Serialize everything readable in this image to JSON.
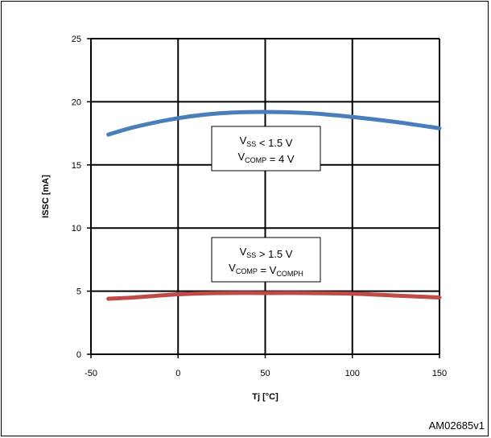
{
  "chart_data": {
    "type": "line",
    "xlabel": "Tj [°C]",
    "ylabel": "ISSC [mA]",
    "xlim": [
      -50,
      150
    ],
    "ylim": [
      0,
      25
    ],
    "xticks": [
      -50,
      0,
      50,
      100,
      150
    ],
    "yticks": [
      0,
      5,
      10,
      15,
      20,
      25
    ],
    "grid": true,
    "series": [
      {
        "color": "#4a7ebb",
        "x": [
          -40,
          -25,
          0,
          25,
          50,
          75,
          100,
          125,
          150
        ],
        "y": [
          17.4,
          18.0,
          18.7,
          19.1,
          19.2,
          19.1,
          18.8,
          18.4,
          17.9
        ]
      },
      {
        "color": "#be4b48",
        "x": [
          -40,
          -25,
          0,
          25,
          50,
          75,
          100,
          125,
          150
        ],
        "y": [
          4.4,
          4.5,
          4.75,
          4.85,
          4.85,
          4.85,
          4.8,
          4.65,
          4.5
        ]
      }
    ],
    "annotations": [
      {
        "line1": {
          "main": "V",
          "sub": "SS",
          "rest": " < 1.5 V"
        },
        "line2": {
          "main": "V",
          "sub": "COMP",
          "rest": " = 4 V",
          "sub2": ""
        }
      },
      {
        "line1": {
          "main": "V",
          "sub": "SS",
          "rest": " > 1.5 V"
        },
        "line2": {
          "main": "V",
          "sub": "COMP",
          "rest": " = V",
          "sub2": "COMPH"
        }
      }
    ]
  },
  "figure_code": "AM02685v1"
}
